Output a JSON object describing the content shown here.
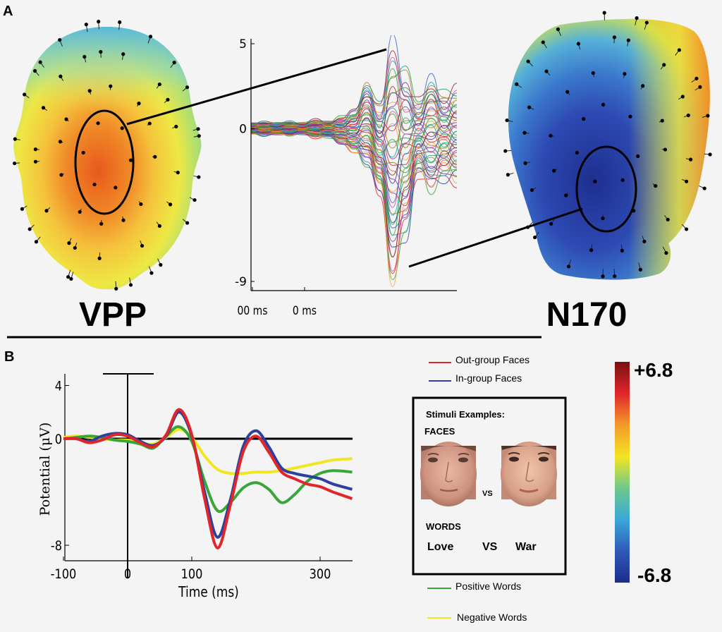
{
  "panel_a": {
    "label": "A",
    "left_head_label": "VPP",
    "right_head_label": "N170"
  },
  "panel_b": {
    "label": "B"
  },
  "chart_data": [
    {
      "type": "line",
      "title": "",
      "xlabel": "",
      "ylabel": "",
      "x_ticks": [
        "00 ms",
        "0 ms"
      ],
      "y_ticks": [
        "5",
        "0",
        "-9"
      ],
      "ylim": [
        -9,
        5
      ],
      "description_series": "butterfly plot of channel waveforms",
      "x": [
        -100,
        -80,
        -60,
        -40,
        -20,
        0,
        20,
        40,
        60,
        80,
        100,
        120,
        140,
        160,
        180,
        200,
        220
      ],
      "series_envelope_max": [
        0.3,
        0.4,
        0.3,
        0.4,
        0.3,
        0.5,
        0.4,
        0.6,
        1.0,
        2.5,
        1.2,
        4.6,
        3.0,
        1.5,
        2.8,
        1.8,
        2.2
      ],
      "series_envelope_min": [
        -0.3,
        -0.4,
        -0.3,
        -0.4,
        -0.3,
        -0.5,
        -0.5,
        -0.8,
        -1.3,
        -2.0,
        -3.5,
        -8.8,
        -6.0,
        -2.5,
        -3.5,
        -2.8,
        -3.0
      ]
    },
    {
      "type": "line",
      "title": "",
      "xlabel": "Time (ms)",
      "ylabel": "Potential (μV)",
      "x_ticks": [
        "-100",
        "0",
        "100",
        "300"
      ],
      "y_ticks": [
        "4",
        "0",
        "-8"
      ],
      "xlim": [
        -100,
        350
      ],
      "ylim": [
        -9,
        5
      ],
      "x": [
        -100,
        -80,
        -60,
        -40,
        -20,
        0,
        20,
        40,
        60,
        80,
        100,
        120,
        140,
        160,
        180,
        200,
        220,
        240,
        260,
        280,
        300,
        320,
        350
      ],
      "series": [
        {
          "name": "Out-group Faces",
          "color": "#e0262a",
          "values": [
            0,
            0,
            -0.3,
            -0.1,
            0.3,
            0.2,
            -0.3,
            -0.6,
            0.3,
            2.2,
            0.3,
            -4.5,
            -8.2,
            -5.0,
            -1.0,
            0.2,
            -1.0,
            -2.5,
            -3.0,
            -3.4,
            -3.6,
            -4.0,
            -4.5
          ]
        },
        {
          "name": "In-group Faces",
          "color": "#2e3f9e",
          "values": [
            0,
            0,
            -0.2,
            0.2,
            0.4,
            0.3,
            -0.2,
            -0.5,
            0.2,
            2.0,
            0.2,
            -4.0,
            -7.4,
            -4.6,
            -0.6,
            0.6,
            -0.6,
            -2.2,
            -2.6,
            -2.8,
            -3.0,
            -3.4,
            -3.8
          ]
        },
        {
          "name": "Positive Words",
          "color": "#3aa538",
          "values": [
            0,
            0.1,
            0.2,
            0.1,
            -0.1,
            -0.2,
            -0.4,
            -0.7,
            0.2,
            0.9,
            -0.2,
            -3.2,
            -5.4,
            -4.8,
            -3.7,
            -3.3,
            -3.8,
            -4.8,
            -4.2,
            -3.2,
            -2.6,
            -2.4,
            -2.5
          ]
        },
        {
          "name": "Negative Words",
          "color": "#f2e521",
          "values": [
            0.1,
            0.2,
            0.1,
            0.0,
            -0.1,
            -0.1,
            -0.3,
            -0.4,
            0.1,
            0.7,
            0.1,
            -1.3,
            -2.3,
            -2.6,
            -2.6,
            -2.5,
            -2.5,
            -2.4,
            -2.2,
            -2.0,
            -1.8,
            -1.6,
            -1.5
          ]
        }
      ]
    }
  ],
  "legend": {
    "out_group": "Out-group Faces",
    "in_group": "In-group Faces",
    "positive": "Positive Words",
    "negative": "Negative Words"
  },
  "colorbar": {
    "max_label": "+6.8",
    "min_label": "-6.8",
    "stops": [
      "#7a1010",
      "#e0262a",
      "#f39a2a",
      "#f2e521",
      "#6fc98a",
      "#3aa8d8",
      "#2f5ab8",
      "#1c2d8a"
    ]
  },
  "stimuli": {
    "title": "Stimuli Examples:",
    "faces_heading": "FACES",
    "vs_small": "VS",
    "words_heading": "WORDS",
    "word_left": "Love",
    "vs_word": "VS",
    "word_right": "War"
  }
}
